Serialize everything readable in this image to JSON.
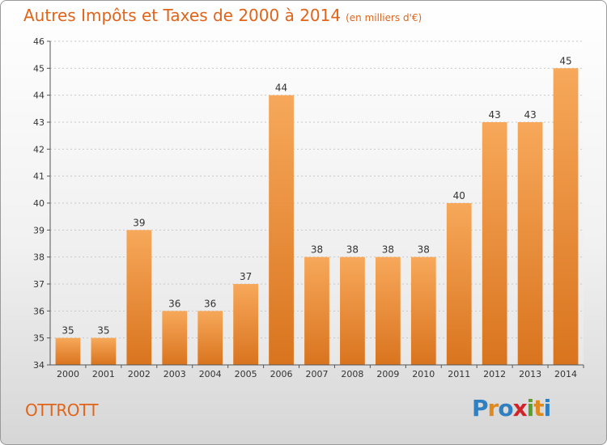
{
  "header": {
    "title": "Autres Impôts et Taxes de 2000 à 2014",
    "subtitle": "(en milliers d'€)"
  },
  "commune": "OTTROTT",
  "logo": {
    "text": "Proxiti",
    "letters": [
      {
        "ch": "P",
        "color": "#2f7fc1"
      },
      {
        "ch": "r",
        "color": "#e08a1e"
      },
      {
        "ch": "o",
        "color": "#2f7fc1"
      },
      {
        "ch": "x",
        "color": "#d2232a"
      },
      {
        "ch": "i",
        "color": "#5aa02c"
      },
      {
        "ch": "t",
        "color": "#e08a1e"
      },
      {
        "ch": "i",
        "color": "#2f7fc1"
      }
    ]
  },
  "colors": {
    "accent": "#e0641a",
    "bar_top": "#f7a85a",
    "bar_bottom": "#d9741e"
  },
  "chart_data": {
    "type": "bar",
    "title": "Autres Impôts et Taxes de 2000 à 2014",
    "subtitle": "(en milliers d'€)",
    "categories": [
      "2000",
      "2001",
      "2002",
      "2003",
      "2004",
      "2005",
      "2006",
      "2007",
      "2008",
      "2009",
      "2010",
      "2011",
      "2012",
      "2013",
      "2014"
    ],
    "values": [
      35,
      35,
      39,
      36,
      36,
      37,
      44,
      38,
      38,
      38,
      38,
      40,
      43,
      43,
      45
    ],
    "ylim": [
      34,
      46
    ],
    "yticks": [
      34,
      35,
      36,
      37,
      38,
      39,
      40,
      41,
      42,
      43,
      44,
      45,
      46
    ],
    "xlabel": "",
    "ylabel": "",
    "grid": true,
    "data_labels": true
  }
}
